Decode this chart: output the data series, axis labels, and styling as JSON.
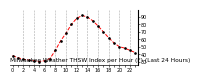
{
  "title": "Milwaukee Weather THSW Index per Hour (F) (Last 24 Hours)",
  "hours": [
    0,
    1,
    2,
    3,
    4,
    5,
    6,
    7,
    8,
    9,
    10,
    11,
    12,
    13,
    14,
    15,
    16,
    17,
    18,
    19,
    20,
    21,
    22,
    23
  ],
  "values": [
    38,
    35,
    33,
    32,
    31,
    30,
    31,
    34,
    45,
    58,
    68,
    80,
    88,
    92,
    90,
    85,
    78,
    70,
    62,
    55,
    50,
    48,
    45,
    42
  ],
  "line_color": "#ff0000",
  "marker_color": "#000000",
  "bg_color": "#ffffff",
  "grid_color": "#aaaaaa",
  "ylim": [
    25,
    100
  ],
  "yticks": [
    30,
    40,
    50,
    60,
    70,
    80,
    90
  ],
  "grid_hours": [
    2,
    4,
    6,
    8,
    10,
    12,
    14,
    16,
    18,
    20,
    22
  ],
  "title_fontsize": 4.2,
  "tick_fontsize": 3.5
}
